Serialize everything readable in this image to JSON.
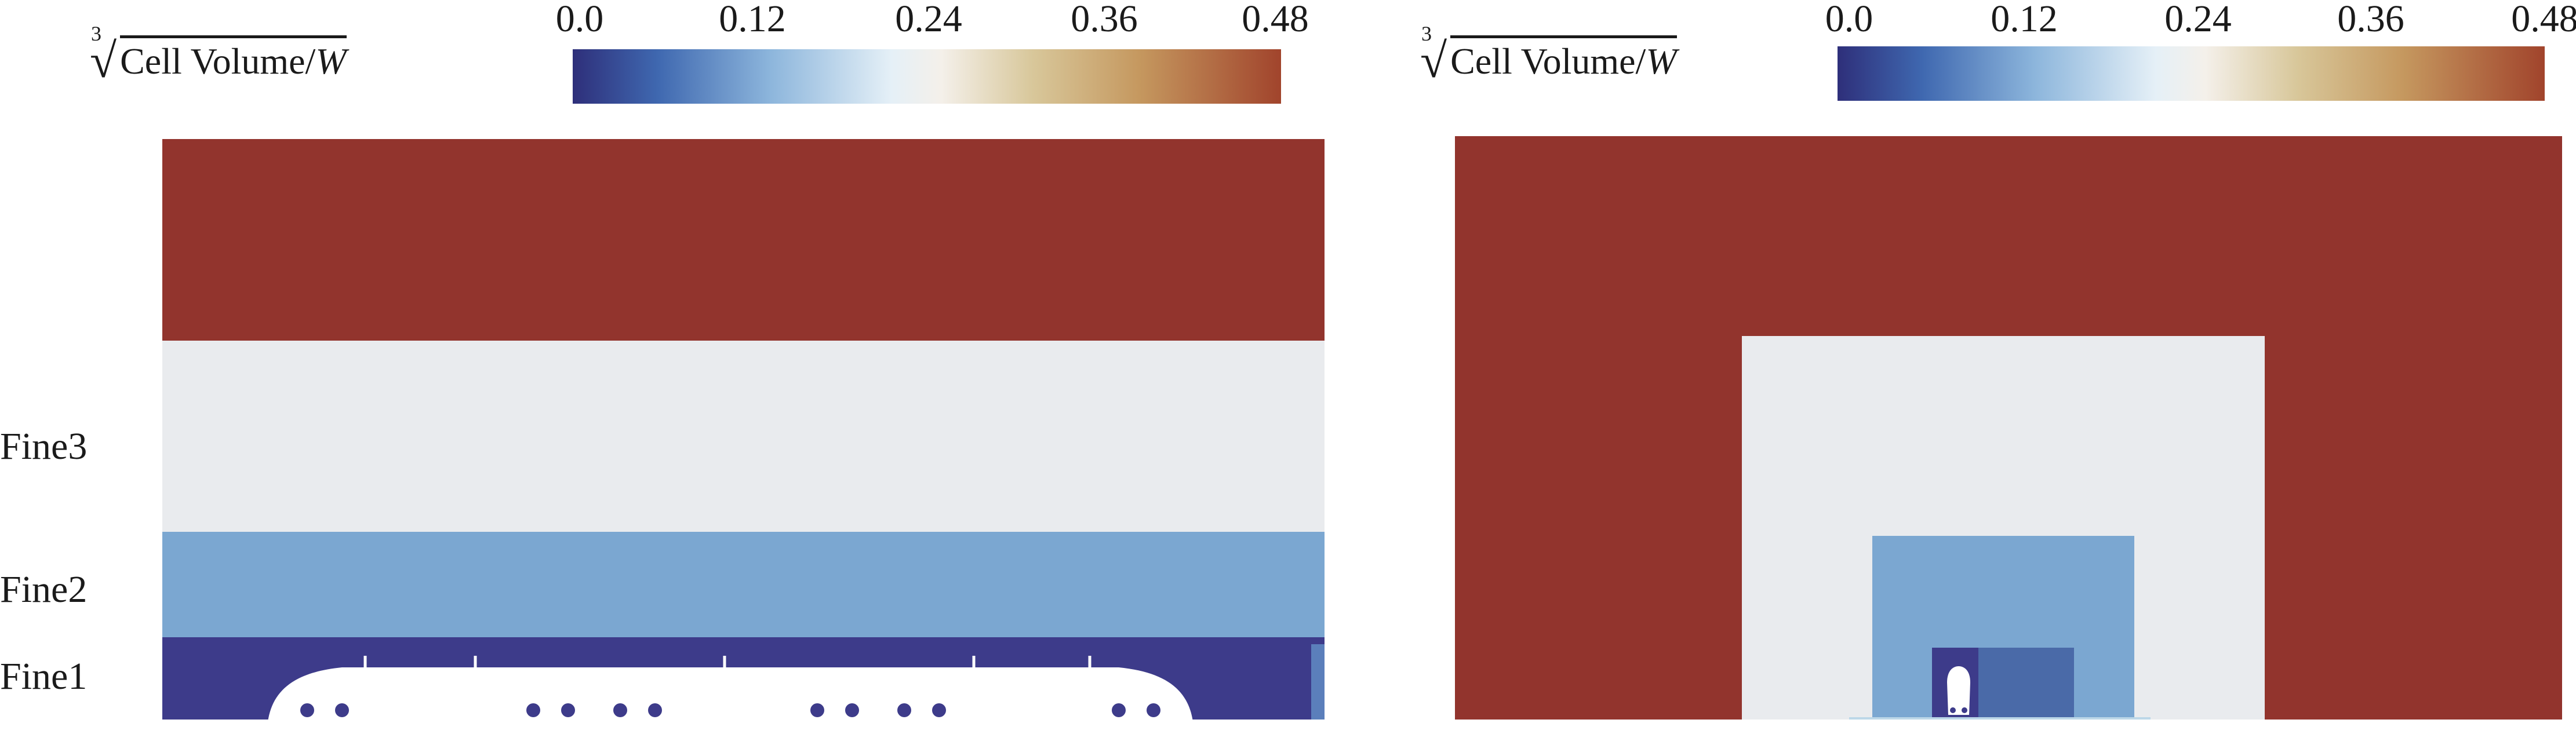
{
  "left_panel": {
    "unit_label": {
      "index": "3",
      "text": "Cell Volume/",
      "var": "W"
    },
    "colorbar": {
      "ticks": [
        "0.0",
        "0.12",
        "0.24",
        "0.36",
        "0.48"
      ],
      "min": 0.0,
      "max": 0.48
    },
    "zones": [
      {
        "name": "Fine3",
        "color": "#e9ebee"
      },
      {
        "name": "Fine2",
        "color": "#7ba7d1"
      },
      {
        "name": "Fine1",
        "color": "#3d3b8a"
      }
    ],
    "outer_color": "#92342d"
  },
  "right_panel": {
    "unit_label": {
      "index": "3",
      "text": "Cell Volume/",
      "var": "W"
    },
    "colorbar": {
      "ticks": [
        "0.0",
        "0.12",
        "0.24",
        "0.36",
        "0.48"
      ],
      "min": 0.0,
      "max": 0.48
    },
    "colors": {
      "outer": "#92342d",
      "fine3": "#e9ebee",
      "fine2": "#7ba7d1",
      "fine1": "#4a6aa8",
      "core": "#3d3b8a"
    }
  }
}
